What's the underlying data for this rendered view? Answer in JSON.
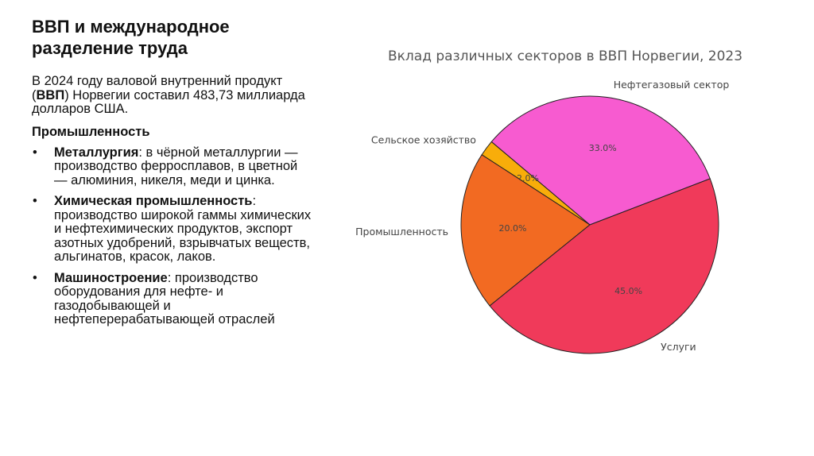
{
  "header": {
    "title": "ВВП и международное разделение труда"
  },
  "intro": {
    "parts": [
      "В 2024 году валовой внутренний продукт (",
      "ВВП",
      ") Норвегии составил 483,73 миллиарда долларов США."
    ]
  },
  "section": {
    "heading": "Промышленность",
    "bullets": [
      {
        "term": "Металлургия",
        "text": ": в чёрной металлургии — производство ферросплавов, в цветной — алюминия, никеля, меди и цинка."
      },
      {
        "term": "Химическая промышленность",
        "text": ": производство широкой гаммы химических и нефтехимических продуктов, экспорт азотных удобрений, взрывчатых веществ, альгинатов, красок, лаков."
      },
      {
        "term": "Машиностроение",
        "text": ": производство оборудования для нефте- и газодобывающей и нефтеперерабатывающей отраслей"
      }
    ]
  },
  "chart_data": {
    "type": "pie",
    "title": "Вклад различных секторов в ВВП Норвегии, 2023",
    "categories": [
      "Нефтегазовый сектор",
      "Сельское хозяйство",
      "Промышленность",
      "Услуги"
    ],
    "values": [
      33.0,
      2.0,
      20.0,
      45.0
    ],
    "value_labels": [
      "33.0%",
      "2.0%",
      "20.0%",
      "45.0%"
    ],
    "colors": [
      "#f75bd0",
      "#f8ad0a",
      "#f26a22",
      "#f03a5a"
    ]
  }
}
